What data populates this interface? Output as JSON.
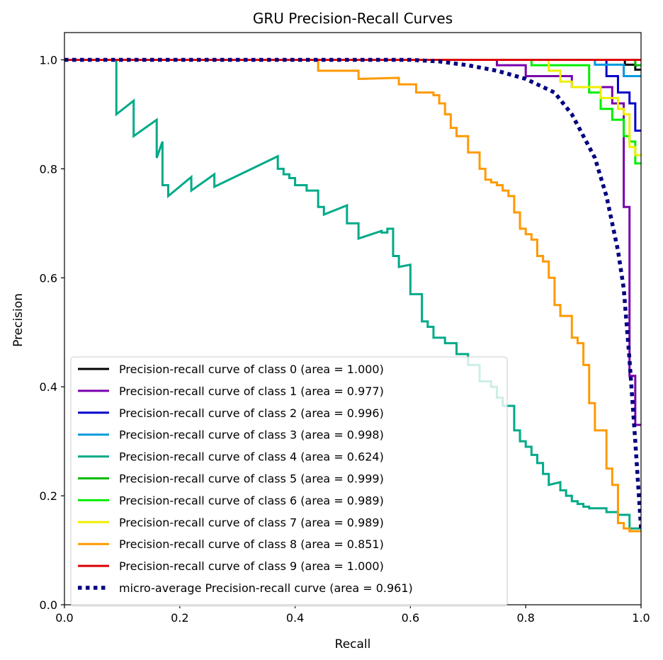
{
  "chart_data": {
    "type": "line",
    "title": "GRU Precision-Recall Curves",
    "xlabel": "Recall",
    "ylabel": "Precision",
    "xlim": [
      0.0,
      1.0
    ],
    "ylim": [
      0.0,
      1.05
    ],
    "xticks": [
      "0.0",
      "0.2",
      "0.4",
      "0.6",
      "0.8",
      "1.0"
    ],
    "yticks": [
      "0.0",
      "0.2",
      "0.4",
      "0.6",
      "0.8",
      "1.0"
    ],
    "xtick_values": [
      0.0,
      0.2,
      0.4,
      0.6,
      0.8,
      1.0
    ],
    "ytick_values": [
      0.0,
      0.2,
      0.4,
      0.6,
      0.8,
      1.0
    ],
    "grid": false,
    "legend_position": "lower-left",
    "series": [
      {
        "name": "Precision-recall curve of class 0 (area = 1.000)",
        "color": "#000000",
        "style": "solid",
        "points": [
          [
            0,
            1
          ],
          [
            0.972,
            1
          ],
          [
            0.972,
            0.991
          ],
          [
            0.99,
            0.991
          ],
          [
            0.99,
            0.982
          ],
          [
            1.0,
            0.982
          ]
        ]
      },
      {
        "name": "Precision-recall curve of class 1 (area = 0.977)",
        "color": "#7700aa",
        "style": "solid",
        "points": [
          [
            0,
            1
          ],
          [
            0.75,
            1
          ],
          [
            0.75,
            0.99
          ],
          [
            0.8,
            0.99
          ],
          [
            0.8,
            0.97
          ],
          [
            0.88,
            0.97
          ],
          [
            0.88,
            0.95
          ],
          [
            0.95,
            0.95
          ],
          [
            0.95,
            0.92
          ],
          [
            0.97,
            0.92
          ],
          [
            0.97,
            0.73
          ],
          [
            0.98,
            0.73
          ],
          [
            0.98,
            0.42
          ],
          [
            0.99,
            0.42
          ],
          [
            0.99,
            0.33
          ],
          [
            1.0,
            0.33
          ]
        ]
      },
      {
        "name": "Precision-recall curve of class 2 (area = 0.996)",
        "color": "#0000cc",
        "style": "solid",
        "points": [
          [
            0,
            1
          ],
          [
            0.94,
            1
          ],
          [
            0.94,
            0.97
          ],
          [
            0.96,
            0.97
          ],
          [
            0.96,
            0.94
          ],
          [
            0.98,
            0.94
          ],
          [
            0.98,
            0.92
          ],
          [
            0.99,
            0.92
          ],
          [
            0.99,
            0.87
          ],
          [
            1.0,
            0.87
          ]
        ]
      },
      {
        "name": "Precision-recall curve of class 3 (area = 0.998)",
        "color": "#0099dd",
        "style": "solid",
        "points": [
          [
            0,
            1
          ],
          [
            0.92,
            1
          ],
          [
            0.92,
            0.991
          ],
          [
            0.97,
            0.991
          ],
          [
            0.97,
            0.97
          ],
          [
            1.0,
            0.97
          ]
        ]
      },
      {
        "name": "Precision-recall curve of class 4 (area = 0.624)",
        "color": "#00aa88",
        "style": "solid",
        "points": [
          [
            0,
            1
          ],
          [
            0.09,
            1
          ],
          [
            0.09,
            0.9
          ],
          [
            0.12,
            0.925
          ],
          [
            0.12,
            0.86
          ],
          [
            0.16,
            0.89
          ],
          [
            0.16,
            0.82
          ],
          [
            0.17,
            0.85
          ],
          [
            0.17,
            0.77
          ],
          [
            0.18,
            0.77
          ],
          [
            0.18,
            0.75
          ],
          [
            0.22,
            0.785
          ],
          [
            0.22,
            0.76
          ],
          [
            0.26,
            0.79
          ],
          [
            0.26,
            0.767
          ],
          [
            0.37,
            0.823
          ],
          [
            0.37,
            0.8
          ],
          [
            0.38,
            0.8
          ],
          [
            0.38,
            0.79
          ],
          [
            0.39,
            0.79
          ],
          [
            0.39,
            0.783
          ],
          [
            0.4,
            0.783
          ],
          [
            0.4,
            0.77
          ],
          [
            0.42,
            0.77
          ],
          [
            0.42,
            0.76
          ],
          [
            0.44,
            0.76
          ],
          [
            0.44,
            0.73
          ],
          [
            0.45,
            0.73
          ],
          [
            0.45,
            0.716
          ],
          [
            0.49,
            0.733
          ],
          [
            0.49,
            0.7
          ],
          [
            0.51,
            0.7
          ],
          [
            0.51,
            0.672
          ],
          [
            0.55,
            0.686
          ],
          [
            0.55,
            0.683
          ],
          [
            0.56,
            0.683
          ],
          [
            0.56,
            0.69
          ],
          [
            0.57,
            0.69
          ],
          [
            0.57,
            0.64
          ],
          [
            0.58,
            0.64
          ],
          [
            0.58,
            0.62
          ],
          [
            0.6,
            0.624
          ],
          [
            0.6,
            0.57
          ],
          [
            0.62,
            0.57
          ],
          [
            0.62,
            0.52
          ],
          [
            0.63,
            0.52
          ],
          [
            0.63,
            0.51
          ],
          [
            0.64,
            0.51
          ],
          [
            0.64,
            0.49
          ],
          [
            0.66,
            0.49
          ],
          [
            0.66,
            0.48
          ],
          [
            0.68,
            0.48
          ],
          [
            0.68,
            0.46
          ],
          [
            0.7,
            0.46
          ],
          [
            0.7,
            0.44
          ],
          [
            0.72,
            0.44
          ],
          [
            0.72,
            0.41
          ],
          [
            0.74,
            0.41
          ],
          [
            0.74,
            0.4
          ],
          [
            0.75,
            0.4
          ],
          [
            0.75,
            0.38
          ],
          [
            0.76,
            0.38
          ],
          [
            0.76,
            0.365
          ],
          [
            0.78,
            0.365
          ],
          [
            0.78,
            0.32
          ],
          [
            0.79,
            0.32
          ],
          [
            0.79,
            0.3
          ],
          [
            0.8,
            0.3
          ],
          [
            0.8,
            0.29
          ],
          [
            0.81,
            0.29
          ],
          [
            0.81,
            0.275
          ],
          [
            0.82,
            0.275
          ],
          [
            0.82,
            0.26
          ],
          [
            0.83,
            0.26
          ],
          [
            0.83,
            0.24
          ],
          [
            0.84,
            0.24
          ],
          [
            0.84,
            0.22
          ],
          [
            0.86,
            0.225
          ],
          [
            0.86,
            0.21
          ],
          [
            0.87,
            0.21
          ],
          [
            0.87,
            0.2
          ],
          [
            0.88,
            0.2
          ],
          [
            0.88,
            0.19
          ],
          [
            0.89,
            0.19
          ],
          [
            0.89,
            0.185
          ],
          [
            0.9,
            0.185
          ],
          [
            0.9,
            0.18
          ],
          [
            0.91,
            0.18
          ],
          [
            0.91,
            0.177
          ],
          [
            0.94,
            0.177
          ],
          [
            0.94,
            0.17
          ],
          [
            0.96,
            0.17
          ],
          [
            0.96,
            0.165
          ],
          [
            0.98,
            0.165
          ],
          [
            0.98,
            0.14
          ],
          [
            1.0,
            0.14
          ]
        ]
      },
      {
        "name": "Precision-recall curve of class 5 (area = 0.999)",
        "color": "#00bb00",
        "style": "solid",
        "points": [
          [
            0,
            1
          ],
          [
            0.99,
            1
          ],
          [
            0.99,
            0.99
          ],
          [
            1.0,
            0.99
          ]
        ]
      },
      {
        "name": "Precision-recall curve of class 6 (area = 0.989)",
        "color": "#00ee00",
        "style": "solid",
        "points": [
          [
            0,
            1
          ],
          [
            0.81,
            1
          ],
          [
            0.81,
            0.99
          ],
          [
            0.91,
            0.99
          ],
          [
            0.91,
            0.94
          ],
          [
            0.93,
            0.94
          ],
          [
            0.93,
            0.91
          ],
          [
            0.95,
            0.91
          ],
          [
            0.95,
            0.89
          ],
          [
            0.97,
            0.89
          ],
          [
            0.97,
            0.86
          ],
          [
            0.98,
            0.86
          ],
          [
            0.98,
            0.85
          ],
          [
            0.99,
            0.85
          ],
          [
            0.99,
            0.81
          ],
          [
            1.0,
            0.81
          ]
        ]
      },
      {
        "name": "Precision-recall curve of class 7 (area = 0.989)",
        "color": "#eeee00",
        "style": "solid",
        "points": [
          [
            0,
            1
          ],
          [
            0.84,
            1
          ],
          [
            0.84,
            0.98
          ],
          [
            0.86,
            0.98
          ],
          [
            0.86,
            0.96
          ],
          [
            0.88,
            0.96
          ],
          [
            0.88,
            0.95
          ],
          [
            0.93,
            0.95
          ],
          [
            0.93,
            0.93
          ],
          [
            0.96,
            0.93
          ],
          [
            0.96,
            0.91
          ],
          [
            0.97,
            0.91
          ],
          [
            0.97,
            0.9
          ],
          [
            0.98,
            0.9
          ],
          [
            0.98,
            0.84
          ],
          [
            0.99,
            0.84
          ],
          [
            0.99,
            0.825
          ],
          [
            1.0,
            0.825
          ]
        ]
      },
      {
        "name": "Precision-recall curve of class 8 (area = 0.851)",
        "color": "#ff9900",
        "style": "solid",
        "points": [
          [
            0,
            1
          ],
          [
            0.44,
            1
          ],
          [
            0.44,
            0.98
          ],
          [
            0.51,
            0.98
          ],
          [
            0.51,
            0.965
          ],
          [
            0.58,
            0.967
          ],
          [
            0.58,
            0.955
          ],
          [
            0.61,
            0.955
          ],
          [
            0.61,
            0.94
          ],
          [
            0.64,
            0.94
          ],
          [
            0.64,
            0.935
          ],
          [
            0.65,
            0.935
          ],
          [
            0.65,
            0.92
          ],
          [
            0.66,
            0.92
          ],
          [
            0.66,
            0.9
          ],
          [
            0.67,
            0.9
          ],
          [
            0.67,
            0.875
          ],
          [
            0.68,
            0.875
          ],
          [
            0.68,
            0.86
          ],
          [
            0.7,
            0.86
          ],
          [
            0.7,
            0.83
          ],
          [
            0.72,
            0.83
          ],
          [
            0.72,
            0.8
          ],
          [
            0.73,
            0.8
          ],
          [
            0.73,
            0.78
          ],
          [
            0.74,
            0.78
          ],
          [
            0.74,
            0.775
          ],
          [
            0.75,
            0.775
          ],
          [
            0.75,
            0.77
          ],
          [
            0.76,
            0.77
          ],
          [
            0.76,
            0.76
          ],
          [
            0.77,
            0.76
          ],
          [
            0.77,
            0.75
          ],
          [
            0.78,
            0.75
          ],
          [
            0.78,
            0.72
          ],
          [
            0.79,
            0.72
          ],
          [
            0.79,
            0.69
          ],
          [
            0.8,
            0.69
          ],
          [
            0.8,
            0.68
          ],
          [
            0.81,
            0.68
          ],
          [
            0.81,
            0.67
          ],
          [
            0.82,
            0.67
          ],
          [
            0.82,
            0.64
          ],
          [
            0.83,
            0.64
          ],
          [
            0.83,
            0.63
          ],
          [
            0.84,
            0.63
          ],
          [
            0.84,
            0.6
          ],
          [
            0.85,
            0.6
          ],
          [
            0.85,
            0.55
          ],
          [
            0.86,
            0.55
          ],
          [
            0.86,
            0.53
          ],
          [
            0.88,
            0.53
          ],
          [
            0.88,
            0.49
          ],
          [
            0.89,
            0.49
          ],
          [
            0.89,
            0.48
          ],
          [
            0.9,
            0.48
          ],
          [
            0.9,
            0.44
          ],
          [
            0.91,
            0.44
          ],
          [
            0.91,
            0.37
          ],
          [
            0.92,
            0.37
          ],
          [
            0.92,
            0.32
          ],
          [
            0.94,
            0.32
          ],
          [
            0.94,
            0.25
          ],
          [
            0.95,
            0.25
          ],
          [
            0.95,
            0.22
          ],
          [
            0.96,
            0.22
          ],
          [
            0.96,
            0.15
          ],
          [
            0.97,
            0.15
          ],
          [
            0.97,
            0.14
          ],
          [
            0.98,
            0.14
          ],
          [
            0.98,
            0.135
          ],
          [
            1.0,
            0.135
          ]
        ]
      },
      {
        "name": "Precision-recall curve of class 9 (area = 1.000)",
        "color": "#dd0000",
        "style": "solid",
        "points": [
          [
            0,
            1
          ],
          [
            1.0,
            1
          ]
        ]
      },
      {
        "name": "micro-average Precision-recall curve (area = 0.961)",
        "color": "#000080",
        "style": "dotted",
        "points": [
          [
            0,
            1
          ],
          [
            0.6,
            1
          ],
          [
            0.65,
            0.997
          ],
          [
            0.7,
            0.99
          ],
          [
            0.75,
            0.98
          ],
          [
            0.8,
            0.965
          ],
          [
            0.85,
            0.94
          ],
          [
            0.88,
            0.9
          ],
          [
            0.9,
            0.86
          ],
          [
            0.92,
            0.82
          ],
          [
            0.94,
            0.75
          ],
          [
            0.95,
            0.7
          ],
          [
            0.96,
            0.65
          ],
          [
            0.97,
            0.58
          ],
          [
            0.98,
            0.45
          ],
          [
            0.99,
            0.3
          ],
          [
            1.0,
            0.14
          ]
        ]
      }
    ]
  }
}
